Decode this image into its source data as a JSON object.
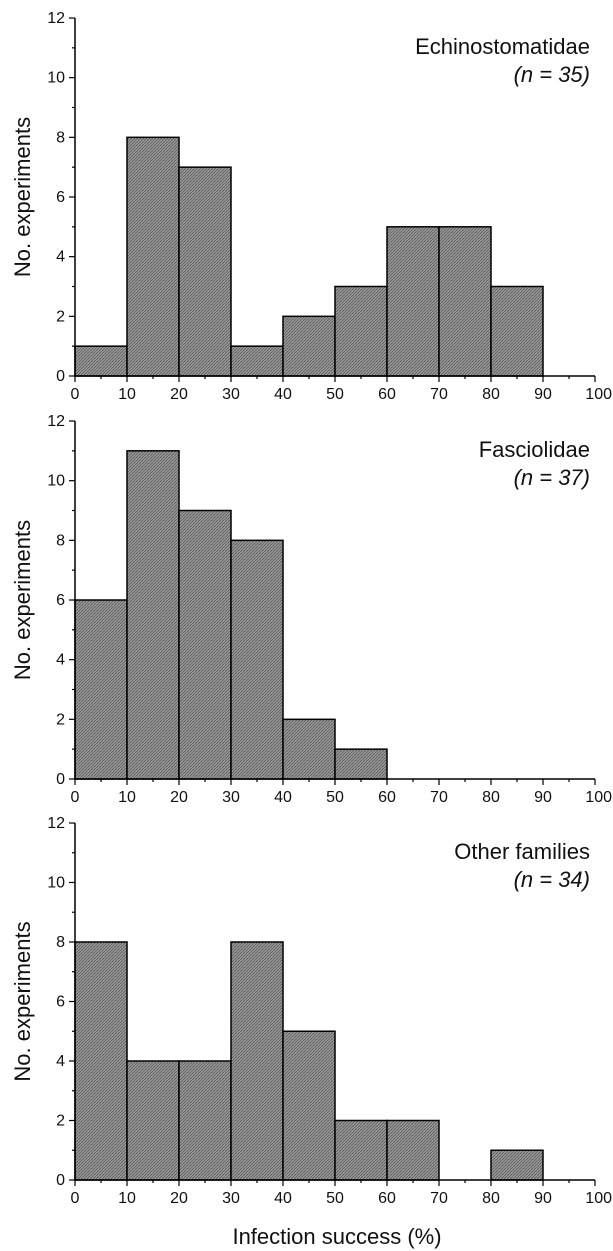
{
  "figure": {
    "x_axis_title": "Infection success (%)"
  },
  "chart_data": [
    {
      "type": "bar",
      "title": "Echinostomatidae",
      "n_label": "(n = 35)",
      "xlabel": "",
      "ylabel": "No. experiments",
      "xlim": [
        0,
        100
      ],
      "ylim": [
        0,
        12
      ],
      "bin_edges": [
        0,
        10,
        20,
        30,
        40,
        50,
        60,
        70,
        80,
        90,
        100
      ],
      "values": [
        1,
        8,
        7,
        1,
        2,
        3,
        5,
        5,
        3,
        0
      ],
      "x_ticks": [
        "0",
        "10",
        "20",
        "30",
        "40",
        "50",
        "60",
        "70",
        "80",
        "90",
        "100"
      ],
      "y_ticks": [
        "0",
        "2",
        "4",
        "6",
        "8",
        "10",
        "12"
      ],
      "bar_fill": "#8c8c8c",
      "grid": false
    },
    {
      "type": "bar",
      "title": "Fasciolidae",
      "n_label": "(n = 37)",
      "xlabel": "",
      "ylabel": "No. experiments",
      "xlim": [
        0,
        100
      ],
      "ylim": [
        0,
        12
      ],
      "bin_edges": [
        0,
        10,
        20,
        30,
        40,
        50,
        60,
        70,
        80,
        90,
        100
      ],
      "values": [
        6,
        11,
        9,
        8,
        2,
        1,
        0,
        0,
        0,
        0
      ],
      "x_ticks": [
        "0",
        "10",
        "20",
        "30",
        "40",
        "50",
        "60",
        "70",
        "80",
        "90",
        "100"
      ],
      "y_ticks": [
        "0",
        "2",
        "4",
        "6",
        "8",
        "10",
        "12"
      ],
      "bar_fill": "#8c8c8c",
      "grid": false
    },
    {
      "type": "bar",
      "title": "Other families",
      "n_label": "(n = 34)",
      "xlabel": "Infection success (%)",
      "ylabel": "No. experiments",
      "xlim": [
        0,
        100
      ],
      "ylim": [
        0,
        12
      ],
      "bin_edges": [
        0,
        10,
        20,
        30,
        40,
        50,
        60,
        70,
        80,
        90,
        100
      ],
      "values": [
        8,
        4,
        4,
        8,
        5,
        2,
        2,
        0,
        1,
        0
      ],
      "x_ticks": [
        "0",
        "10",
        "20",
        "30",
        "40",
        "50",
        "60",
        "70",
        "80",
        "90",
        "100"
      ],
      "y_ticks": [
        "0",
        "2",
        "4",
        "6",
        "8",
        "10",
        "12"
      ],
      "bar_fill": "#8c8c8c",
      "grid": false
    }
  ]
}
